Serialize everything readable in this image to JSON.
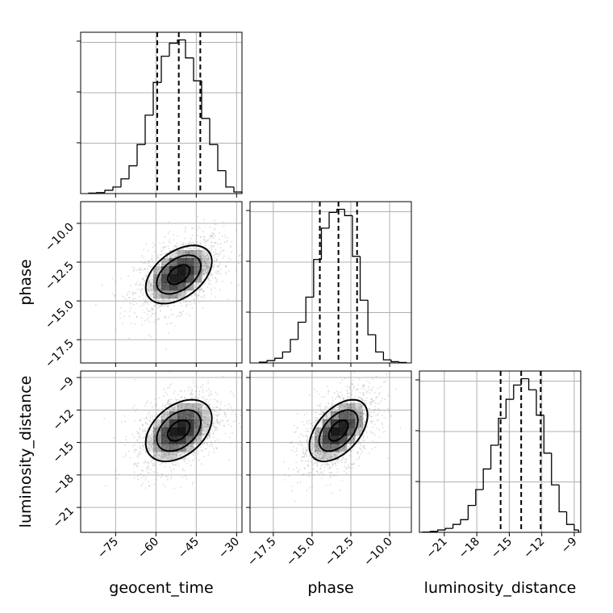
{
  "chart_data": {
    "type": "corner",
    "parameters": [
      "geocent_time",
      "phase",
      "luminosity_distance"
    ],
    "axis_labels": {
      "geocent_time": "geocent_time",
      "phase": "phase",
      "luminosity_distance": "luminosity_distance"
    },
    "ranges": {
      "geocent_time": [
        -88,
        -28
      ],
      "phase": [
        -19,
        -8.6
      ],
      "luminosity_distance": [
        -23.3,
        -8.4
      ]
    },
    "ticks": {
      "geocent_time": [
        -75,
        -60,
        -45,
        -30
      ],
      "phase": [
        -17.5,
        -15.0,
        -12.5,
        -10.0
      ],
      "luminosity_distance": [
        -21,
        -18,
        -15,
        -12,
        -9
      ]
    },
    "tick_labels": {
      "geocent_time": [
        "−75",
        "−60",
        "−45",
        "−30"
      ],
      "phase": [
        "−17.5",
        "−15.0",
        "−12.5",
        "−10.0"
      ],
      "luminosity_distance": [
        "−21",
        "−18",
        "−15",
        "−12",
        "−9"
      ]
    },
    "quantiles": {
      "geocent_time": [
        -59.5,
        -51.5,
        -43.5
      ],
      "phase": [
        -14.5,
        -13.3,
        -12.1
      ],
      "luminosity_distance": [
        -15.8,
        -13.9,
        -12.1
      ]
    },
    "histograms": {
      "geocent_time": {
        "bin_edges": [
          -85,
          -82,
          -79,
          -76,
          -73,
          -70,
          -67,
          -64,
          -61,
          -58,
          -55,
          -52,
          -49,
          -46,
          -43,
          -40,
          -37,
          -34,
          -31,
          -28
        ],
        "counts": [
          0.3,
          0.6,
          2,
          4,
          9,
          17,
          30,
          48,
          68,
          84,
          92,
          94,
          83,
          69,
          46,
          30,
          14,
          4,
          1
        ]
      },
      "phase": {
        "bin_edges": [
          -18.4,
          -17.9,
          -17.4,
          -16.9,
          -16.4,
          -15.9,
          -15.4,
          -14.9,
          -14.4,
          -13.9,
          -13.4,
          -12.9,
          -12.4,
          -11.9,
          -11.4,
          -10.9,
          -10.4,
          -9.9,
          -9.4,
          -8.9
        ],
        "counts": [
          0.5,
          1.5,
          3,
          7,
          15,
          26,
          42,
          66,
          86,
          96,
          98,
          94,
          68,
          40,
          18,
          7,
          2,
          0.8,
          0.3
        ]
      },
      "luminosity_distance": {
        "bin_edges": [
          -23,
          -22.3,
          -21.6,
          -20.9,
          -20.2,
          -19.5,
          -18.8,
          -18.1,
          -17.4,
          -16.7,
          -16,
          -15.3,
          -14.6,
          -13.9,
          -13.2,
          -12.5,
          -11.8,
          -11.1,
          -10.4,
          -9.7,
          -9,
          -8.6
        ],
        "counts": [
          0.2,
          0.6,
          1.5,
          2.5,
          5,
          8,
          17,
          27,
          40,
          55,
          72,
          84,
          93,
          97,
          90,
          74,
          50,
          30,
          13,
          5,
          1.5
        ]
      }
    },
    "pairs": [
      {
        "x": "geocent_time",
        "y": "phase",
        "mean": [
          -51.5,
          -13.3
        ],
        "sd": [
          8.2,
          1.25
        ],
        "rho": 0.45
      },
      {
        "x": "geocent_time",
        "y": "luminosity_distance",
        "mean": [
          -51.5,
          -13.9
        ],
        "sd": [
          8.2,
          1.9
        ],
        "rho": 0.4
      },
      {
        "x": "phase",
        "y": "luminosity_distance",
        "mean": [
          -13.3,
          -13.9
        ],
        "sd": [
          1.25,
          1.9
        ],
        "rho": 0.5
      }
    ],
    "contour_levels": [
      0.5,
      1.0,
      1.5
    ],
    "grid": true,
    "colors": {
      "line": "#000000",
      "grid": "#b0b0b0",
      "scatter": "#9e9e9e",
      "density": "#000000"
    }
  }
}
